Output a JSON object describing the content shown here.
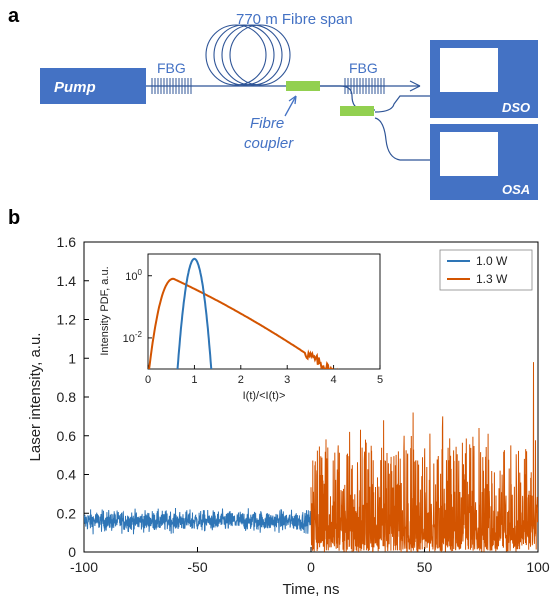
{
  "panel_a": {
    "label": "a",
    "pump": "Pump",
    "fbg_left": "FBG",
    "fbg_right": "FBG",
    "fibre_span": "770 m Fibre span",
    "fibre_coupler_line1": "Fibre",
    "fibre_coupler_line2": "coupler",
    "dso": "DSO",
    "osa": "OSA",
    "colors": {
      "box": "#4472c4",
      "line": "#2f5597",
      "coupler": "#92d050"
    }
  },
  "panel_b": {
    "label": "b"
  },
  "chart_data": [
    {
      "type": "line",
      "title": "",
      "xlabel": "Time, ns",
      "ylabel": "Laser intensity, a.u.",
      "xlim": [
        -100,
        100
      ],
      "ylim": [
        0,
        1.6
      ],
      "x_ticks": [
        -100,
        -50,
        0,
        50,
        100
      ],
      "y_ticks": [
        0,
        0.2,
        0.4,
        0.6,
        0.8,
        1,
        1.2,
        1.4,
        1.6
      ],
      "x_tick_labels": [
        "-100",
        "-50",
        "0",
        "50",
        "100"
      ],
      "y_tick_labels": [
        "0",
        "0.2",
        "0.4",
        "0.6",
        "0.8",
        "1",
        "1.2",
        "1.4",
        "1.6"
      ],
      "legend_position": "top-right",
      "series": [
        {
          "name": "1.0 W",
          "color": "#2e75b6",
          "x_range": [
            -100,
            0
          ],
          "mean": 0.16,
          "min": 0.06,
          "max": 0.27
        },
        {
          "name": "1.3 W",
          "color": "#d35400",
          "x_range": [
            0,
            100
          ],
          "mean": 0.2,
          "min": 0.0,
          "max": 1.0,
          "peaks": [
            [
              12,
              0.55
            ],
            [
              17,
              0.62
            ],
            [
              24,
              0.58
            ],
            [
              32,
              0.68
            ],
            [
              41,
              0.6
            ],
            [
              45,
              0.72
            ],
            [
              58,
              0.7
            ],
            [
              63,
              0.47
            ],
            [
              68,
              0.51
            ],
            [
              74,
              0.64
            ],
            [
              78,
              0.61
            ],
            [
              88,
              0.55
            ],
            [
              95,
              0.52
            ],
            [
              98,
              0.98
            ]
          ]
        }
      ]
    },
    {
      "type": "line",
      "title": "",
      "xlabel": "I(t)/<I(t)>",
      "ylabel": "Intensity PDF, a.u.",
      "xlim": [
        0,
        5
      ],
      "ylim_log10": [
        -3,
        0.7
      ],
      "x_ticks": [
        0,
        1,
        2,
        3,
        4,
        5
      ],
      "x_tick_labels": [
        "0",
        "1",
        "2",
        "3",
        "4",
        "5"
      ],
      "y_tick_labels": [
        {
          "base": "10",
          "exp": "0",
          "value": 1
        },
        {
          "base": "10",
          "exp": "-2",
          "value": 0.01
        }
      ],
      "series": [
        {
          "name": "1.0 W",
          "color": "#2e75b6",
          "shape": "narrow peak",
          "peak_x": 1.0,
          "peak_y": 3.5
        },
        {
          "name": "1.3 W",
          "color": "#d35400",
          "shape": "broad exponential tail",
          "peak_x": 0.55,
          "peak_y": 0.8
        }
      ]
    }
  ]
}
